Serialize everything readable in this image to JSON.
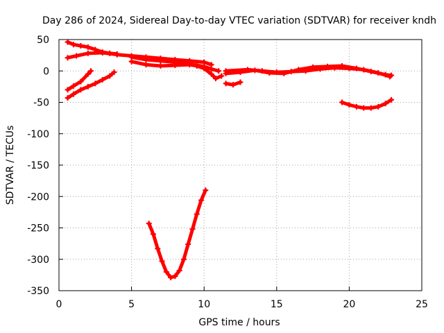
{
  "chart_data": {
    "type": "scatter",
    "title": "Day 286 of 2024, Sidereal Day-to-day VTEC variation (SDTVAR) for receiver kndh",
    "xlabel": "GPS time / hours",
    "ylabel": "SDTVAR / TECUs",
    "xlim": [
      0,
      25
    ],
    "ylim": [
      -350,
      50
    ],
    "xticks": [
      0,
      5,
      10,
      15,
      20,
      25
    ],
    "yticks": [
      50,
      0,
      -50,
      -100,
      -150,
      -200,
      -250,
      -300,
      -350
    ],
    "grid": true,
    "color": "#ff0000",
    "marker": "plus",
    "series": [
      {
        "name": "arc-top-left",
        "points": [
          [
            0.6,
            46
          ],
          [
            1.0,
            42
          ],
          [
            1.5,
            40
          ],
          [
            2.0,
            38
          ],
          [
            2.5,
            34
          ],
          [
            3.0,
            30
          ],
          [
            3.5,
            28
          ],
          [
            4.0,
            27
          ]
        ]
      },
      {
        "name": "arc-top-band",
        "points": [
          [
            0.6,
            21
          ],
          [
            1.2,
            24
          ],
          [
            2.0,
            28
          ],
          [
            3.0,
            29
          ],
          [
            4.0,
            26
          ],
          [
            5.0,
            24
          ],
          [
            6.0,
            22
          ],
          [
            7.0,
            20
          ],
          [
            8.0,
            18
          ],
          [
            9.0,
            16
          ],
          [
            10.0,
            14
          ],
          [
            10.5,
            10
          ]
        ]
      },
      {
        "name": "arc-mid-band",
        "points": [
          [
            5.0,
            15
          ],
          [
            6.0,
            10
          ],
          [
            7.0,
            8
          ],
          [
            8.0,
            9
          ],
          [
            9.0,
            10
          ],
          [
            9.5,
            8
          ],
          [
            10.0,
            4
          ],
          [
            10.5,
            -5
          ],
          [
            10.8,
            -12
          ],
          [
            11.2,
            -8
          ]
        ]
      },
      {
        "name": "arc-lower-mid",
        "points": [
          [
            5.0,
            22
          ],
          [
            6.0,
            18
          ],
          [
            7.0,
            16
          ],
          [
            8.0,
            14
          ],
          [
            9.0,
            11
          ],
          [
            9.5,
            9
          ],
          [
            10.0,
            7
          ],
          [
            10.5,
            3
          ],
          [
            11.0,
            0
          ]
        ]
      },
      {
        "name": "arc-left-low-1",
        "points": [
          [
            0.6,
            -30
          ],
          [
            1.0,
            -24
          ],
          [
            1.5,
            -17
          ],
          [
            2.0,
            -5
          ],
          [
            2.2,
            0
          ]
        ]
      },
      {
        "name": "arc-left-low-2",
        "points": [
          [
            0.6,
            -43
          ],
          [
            1.0,
            -37
          ],
          [
            1.5,
            -30
          ],
          [
            2.0,
            -25
          ],
          [
            2.5,
            -20
          ],
          [
            3.0,
            -14
          ],
          [
            3.5,
            -8
          ],
          [
            3.8,
            -2
          ]
        ]
      },
      {
        "name": "arc-dip",
        "points": [
          [
            11.5,
            -20
          ],
          [
            12.0,
            -22
          ],
          [
            12.5,
            -18
          ]
        ]
      },
      {
        "name": "arc-middle-1",
        "points": [
          [
            11.5,
            0
          ],
          [
            13,
            2
          ],
          [
            14,
            0
          ],
          [
            15,
            -2
          ],
          [
            16,
            -1
          ],
          [
            17,
            0
          ],
          [
            18,
            3
          ],
          [
            19,
            5
          ],
          [
            20,
            4
          ],
          [
            21,
            2
          ],
          [
            22,
            -3
          ],
          [
            22.8,
            -9
          ]
        ]
      },
      {
        "name": "arc-middle-2",
        "points": [
          [
            11.5,
            -4
          ],
          [
            12.5,
            -2
          ],
          [
            13.5,
            1
          ],
          [
            14.5,
            -3
          ],
          [
            15.5,
            -4
          ],
          [
            16.5,
            2
          ],
          [
            17.5,
            6
          ],
          [
            18.5,
            7
          ],
          [
            19.5,
            8
          ],
          [
            20.5,
            4
          ],
          [
            21.5,
            -1
          ],
          [
            22.5,
            -6
          ],
          [
            22.9,
            -7
          ]
        ]
      },
      {
        "name": "arc-right-low",
        "points": [
          [
            19.5,
            -50
          ],
          [
            20,
            -54
          ],
          [
            20.5,
            -57
          ],
          [
            21,
            -59
          ],
          [
            21.5,
            -59
          ],
          [
            22,
            -57
          ],
          [
            22.5,
            -52
          ],
          [
            22.9,
            -46
          ]
        ]
      },
      {
        "name": "arc-deep-v",
        "points": [
          [
            6.2,
            -243
          ],
          [
            6.5,
            -260
          ],
          [
            6.8,
            -283
          ],
          [
            7.1,
            -303
          ],
          [
            7.4,
            -320
          ],
          [
            7.7,
            -329
          ],
          [
            8.0,
            -327
          ],
          [
            8.3,
            -318
          ],
          [
            8.6,
            -300
          ],
          [
            8.9,
            -276
          ],
          [
            9.2,
            -252
          ],
          [
            9.5,
            -228
          ],
          [
            9.8,
            -206
          ],
          [
            10.1,
            -190
          ]
        ]
      }
    ]
  }
}
